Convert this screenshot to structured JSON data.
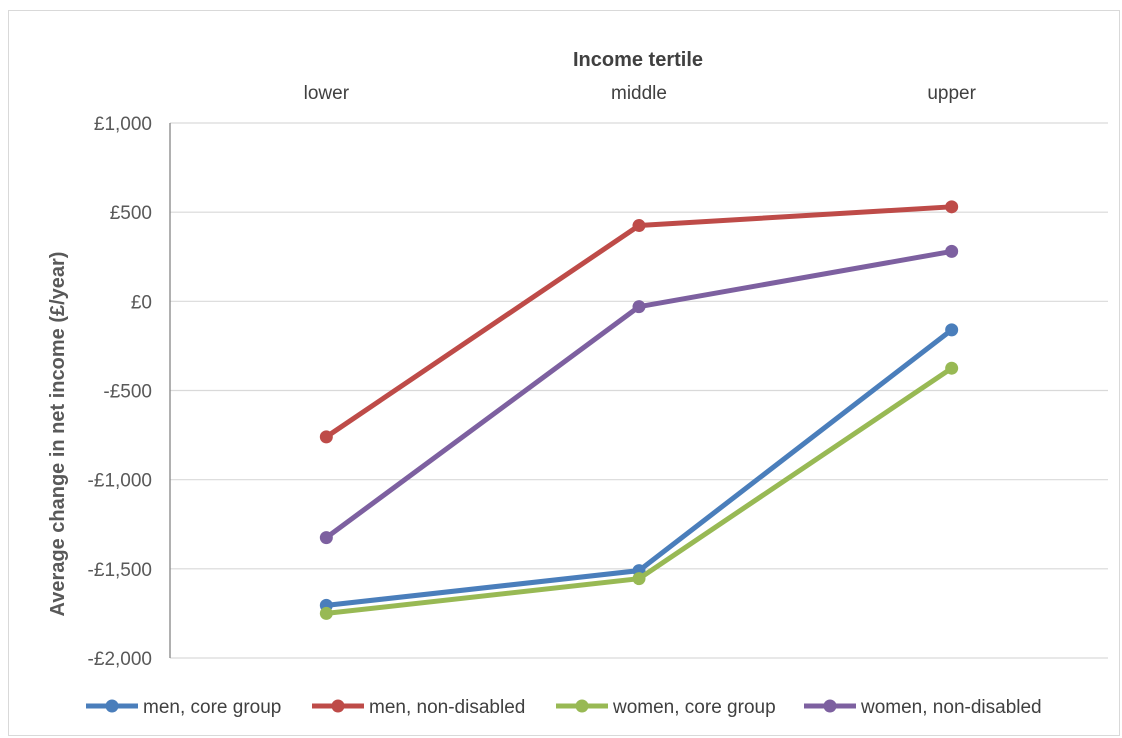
{
  "chart_data": {
    "type": "line",
    "xlabel": "Income tertile",
    "ylabel": "Average change in net income (£/year)",
    "categories": [
      "lower",
      "middle",
      "upper"
    ],
    "ylim": [
      -2000,
      1000
    ],
    "yticks": [
      1000,
      500,
      0,
      -500,
      -1000,
      -1500,
      -2000
    ],
    "ytick_labels": [
      "£1,000",
      "£500",
      "£0",
      "-£500",
      "-£1,000",
      "-£1,500",
      "-£2,000"
    ],
    "grid": true,
    "legend_position": "bottom",
    "series": [
      {
        "name": "men, core group",
        "color": "#4a7ebb",
        "values": [
          -1705,
          -1510,
          -160
        ]
      },
      {
        "name": "men, non-disabled",
        "color": "#be4b48",
        "values": [
          -760,
          425,
          530
        ]
      },
      {
        "name": "women, core group",
        "color": "#98b954",
        "values": [
          -1750,
          -1555,
          -375
        ]
      },
      {
        "name": "women, non-disabled",
        "color": "#7d60a0",
        "values": [
          -1325,
          -30,
          280
        ]
      }
    ]
  }
}
